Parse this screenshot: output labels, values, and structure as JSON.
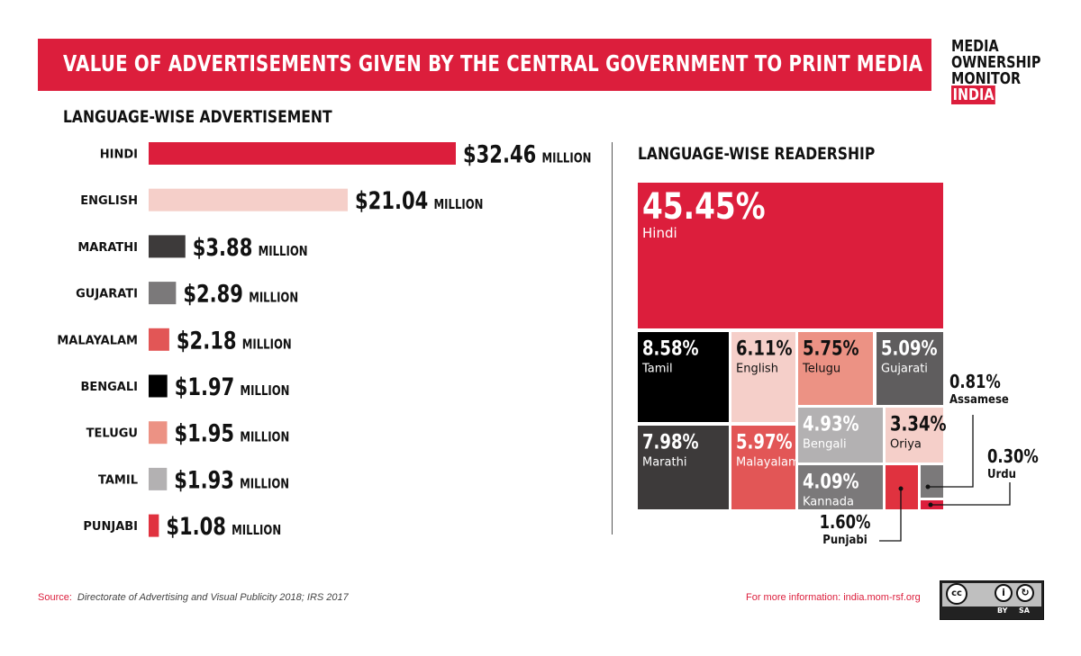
{
  "title": "VALUE OF ADVERTISEMENTS GIVEN BY THE CENTRAL GOVERNMENT TO PRINT MEDIA",
  "logo": {
    "line1": "MEDIA",
    "line2": "OWNERSHIP",
    "line3": "MONITOR",
    "line4": "INDIA"
  },
  "left_title": "LANGUAGE-WISE ADVERTISEMENT",
  "right_title": "LANGUAGE-WISE READERSHIP",
  "colors": {
    "brand_red": "#dc1e3c",
    "light_pink": "#f5cfc9",
    "dark_gray": "#3d3a3a",
    "mid_gray": "#7b797a",
    "coral": "#e25656",
    "black": "#000000",
    "salmon": "#ec9284",
    "light_gray": "#b3b1b2"
  },
  "chart_data": [
    {
      "type": "bar",
      "title": "LANGUAGE-WISE ADVERTISEMENT",
      "orientation": "horizontal",
      "categories": [
        "HINDI",
        "ENGLISH",
        "MARATHI",
        "GUJARATI",
        "MALAYALAM",
        "BENGALI",
        "TELUGU",
        "TAMIL",
        "PUNJABI"
      ],
      "values": [
        32.46,
        21.04,
        3.88,
        2.89,
        2.18,
        1.97,
        1.95,
        1.93,
        1.08
      ],
      "value_labels": [
        "$32.46",
        "$21.04",
        "$3.88",
        "$2.89",
        "$2.18",
        "$1.97",
        "$1.95",
        "$1.93",
        "$1.08"
      ],
      "unit_label": "MILLION",
      "bar_colors": [
        "#dc1e3c",
        "#f5cfc9",
        "#3d3a3a",
        "#7b797a",
        "#e25656",
        "#000000",
        "#ec9284",
        "#b3b1b2",
        "#e0323f"
      ]
    },
    {
      "type": "treemap",
      "title": "LANGUAGE-WISE READERSHIP",
      "items": [
        {
          "label": "Hindi",
          "value": 45.45,
          "pct": "45.45%",
          "color": "#dc1e3c"
        },
        {
          "label": "Tamil",
          "value": 8.58,
          "pct": "8.58%",
          "color": "#000000"
        },
        {
          "label": "Marathi",
          "value": 7.98,
          "pct": "7.98%",
          "color": "#3d3a3a"
        },
        {
          "label": "English",
          "value": 6.11,
          "pct": "6.11%",
          "color": "#f5cfc9"
        },
        {
          "label": "Malayalam",
          "value": 5.97,
          "pct": "5.97%",
          "color": "#e25656"
        },
        {
          "label": "Telugu",
          "value": 5.75,
          "pct": "5.75%",
          "color": "#ec9284"
        },
        {
          "label": "Gujarati",
          "value": 5.09,
          "pct": "5.09%",
          "color": "#5f5d5e"
        },
        {
          "label": "Bengali",
          "value": 4.93,
          "pct": "4.93%",
          "color": "#b3b1b2"
        },
        {
          "label": "Kannada",
          "value": 4.09,
          "pct": "4.09%",
          "color": "#7b797a"
        },
        {
          "label": "Oriya",
          "value": 3.34,
          "pct": "3.34%",
          "color": "#f5cfc9"
        },
        {
          "label": "Punjabi",
          "value": 1.6,
          "pct": "1.60%",
          "color": "#e0323f"
        },
        {
          "label": "Assamese",
          "value": 0.81,
          "pct": "0.81%",
          "color": "#7b797a"
        },
        {
          "label": "Urdu",
          "value": 0.3,
          "pct": "0.30%",
          "color": "#dc1e3c"
        }
      ]
    }
  ],
  "source": {
    "label": "Source:",
    "text": "Directorate of Advertising and Visual Publicity 2018; IRS 2017"
  },
  "more_info": "For more information: india.mom-rsf.org",
  "license": {
    "cc": "cc",
    "by": "BY",
    "sa": "SA"
  }
}
